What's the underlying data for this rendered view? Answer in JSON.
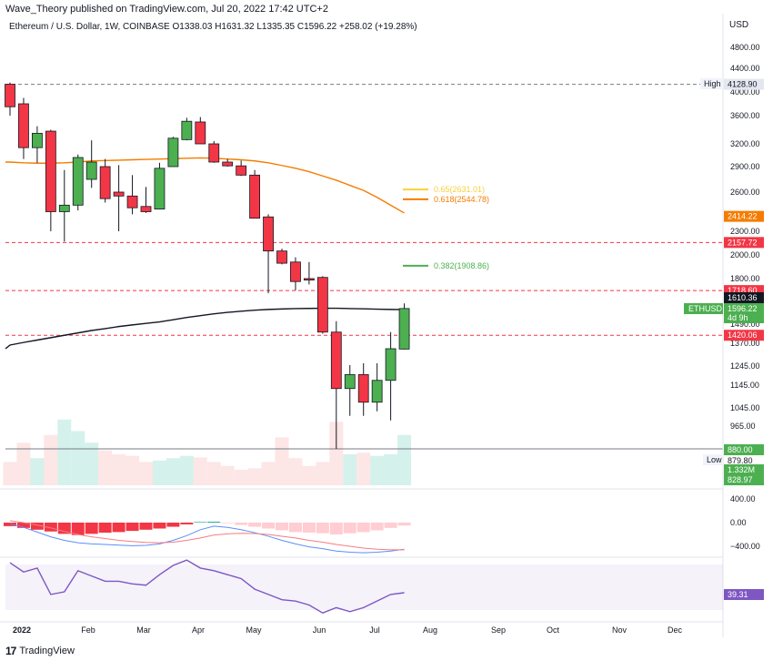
{
  "caption": "Wave_Theory published on TradingView.com, Jul 20, 2022 17:42 UTC+2",
  "footer_brand": "TradingView",
  "chart_data": {
    "type": "candlestick",
    "symbol_line": "Ethereum / U.S. Dollar, 1W, COINBASE  O1338.03  H1631.32  L1335.35  C1596.22  +258.02 (+19.28%)",
    "currency_label": "USD",
    "y_ticks": [
      "4800.00",
      "4400.00",
      "4000.00",
      "3600.00",
      "3200.00",
      "2900.00",
      "2600.00",
      "2300.00",
      "2000.00",
      "1800.00",
      "1490.00",
      "1370.00",
      "1245.00",
      "1145.00",
      "1045.00",
      "965.00"
    ],
    "y_tick_values": [
      4800,
      4400,
      4000,
      3600,
      3200,
      2900,
      2600,
      2300,
      2000,
      1800,
      1490,
      1370,
      1245,
      1145,
      1045,
      965
    ],
    "x_labels": [
      "2022",
      "Feb",
      "Mar",
      "Apr",
      "May",
      "Jun",
      "Jul",
      "Aug",
      "Sep",
      "Oct",
      "Nov",
      "Dec"
    ],
    "candles": [
      {
        "o": 4130,
        "h": 4160,
        "l": 3600,
        "c": 3750
      },
      {
        "o": 3800,
        "h": 3900,
        "l": 3000,
        "c": 3150
      },
      {
        "o": 3150,
        "h": 3450,
        "l": 2950,
        "c": 3350
      },
      {
        "o": 3380,
        "h": 3400,
        "l": 2300,
        "c": 2450
      },
      {
        "o": 2450,
        "h": 2860,
        "l": 2170,
        "c": 2500
      },
      {
        "o": 2500,
        "h": 3060,
        "l": 2460,
        "c": 3020
      },
      {
        "o": 2750,
        "h": 3250,
        "l": 2650,
        "c": 2960
      },
      {
        "o": 2900,
        "h": 3000,
        "l": 2520,
        "c": 2550
      },
      {
        "o": 2600,
        "h": 2920,
        "l": 2300,
        "c": 2570
      },
      {
        "o": 2570,
        "h": 2800,
        "l": 2430,
        "c": 2480
      },
      {
        "o": 2490,
        "h": 2660,
        "l": 2440,
        "c": 2450
      },
      {
        "o": 2470,
        "h": 2950,
        "l": 2470,
        "c": 2880
      },
      {
        "o": 2900,
        "h": 3300,
        "l": 2900,
        "c": 3280
      },
      {
        "o": 3260,
        "h": 3570,
        "l": 3250,
        "c": 3520
      },
      {
        "o": 3510,
        "h": 3580,
        "l": 3200,
        "c": 3200
      },
      {
        "o": 3200,
        "h": 3240,
        "l": 2950,
        "c": 2960
      },
      {
        "o": 2960,
        "h": 3000,
        "l": 2900,
        "c": 2910
      },
      {
        "o": 2910,
        "h": 2980,
        "l": 2790,
        "c": 2800
      },
      {
        "o": 2800,
        "h": 2860,
        "l": 2400,
        "c": 2400
      },
      {
        "o": 2410,
        "h": 2430,
        "l": 1700,
        "c": 2050
      },
      {
        "o": 2050,
        "h": 2080,
        "l": 1920,
        "c": 1930
      },
      {
        "o": 1940,
        "h": 1980,
        "l": 1720,
        "c": 1780
      },
      {
        "o": 1800,
        "h": 1940,
        "l": 1760,
        "c": 1790
      },
      {
        "o": 1810,
        "h": 1820,
        "l": 1430,
        "c": 1440
      },
      {
        "o": 1440,
        "h": 1510,
        "l": 880,
        "c": 1130
      },
      {
        "o": 1130,
        "h": 1250,
        "l": 1010,
        "c": 1200
      },
      {
        "o": 1200,
        "h": 1260,
        "l": 1010,
        "c": 1070
      },
      {
        "o": 1070,
        "h": 1260,
        "l": 1030,
        "c": 1170
      },
      {
        "o": 1170,
        "h": 1440,
        "l": 990,
        "c": 1340
      },
      {
        "o": 1338.03,
        "h": 1631.32,
        "l": 1335.35,
        "c": 1596.22
      }
    ],
    "ema50": [
      2960,
      2950,
      2945,
      2945,
      2950,
      2960,
      2975,
      2980,
      2985,
      2990,
      2995,
      3000,
      3005,
      3010,
      3015,
      3010,
      3000,
      2990,
      2975,
      2950,
      2915,
      2880,
      2840,
      2790,
      2740,
      2680,
      2620,
      2560,
      2500,
      2440
    ],
    "sma200": [
      1360,
      1375,
      1390,
      1405,
      1420,
      1435,
      1450,
      1462,
      1475,
      1485,
      1495,
      1505,
      1520,
      1535,
      1548,
      1560,
      1570,
      1578,
      1585,
      1590,
      1593,
      1596,
      1597,
      1598,
      1598,
      1596,
      1594,
      1592,
      1590,
      1589
    ],
    "volume": [
      0.3,
      0.55,
      0.35,
      0.65,
      0.85,
      0.7,
      0.55,
      0.45,
      0.4,
      0.38,
      0.3,
      0.32,
      0.35,
      0.38,
      0.36,
      0.3,
      0.25,
      0.2,
      0.22,
      0.3,
      0.62,
      0.35,
      0.25,
      0.3,
      0.82,
      0.4,
      0.42,
      0.38,
      0.4,
      0.65
    ],
    "fib_levels": [
      {
        "label": "0.65(2631.01)",
        "value": 2631.01,
        "color": "#f7d13c"
      },
      {
        "label": "0.618(2544.78)",
        "value": 2544.78,
        "color": "#f57c00"
      },
      {
        "label": "0.382(1908.86)",
        "value": 1908.86,
        "color": "#4caf50"
      }
    ],
    "h_lines": [
      {
        "value": 4128.9,
        "color": "#787b86",
        "style": "dash"
      },
      {
        "value": 2157.72,
        "color": "#f23645",
        "style": "dash"
      },
      {
        "value": 1718.6,
        "color": "#f23645",
        "style": "dash"
      },
      {
        "value": 1420.06,
        "color": "#f23645",
        "style": "dash"
      },
      {
        "value": 880.0,
        "color": "#4caf50",
        "style": "solid"
      },
      {
        "value": 879.8,
        "color": "#787b86",
        "style": "solid"
      }
    ],
    "price_tags": [
      {
        "text": "4128.90",
        "value": 4128.9,
        "bg": "#e3e7f0",
        "fg": "#131722"
      },
      {
        "text": "2414.22",
        "value": 2414.22,
        "bg": "#f57c00",
        "fg": "#ffffff"
      },
      {
        "text": "2157.72",
        "value": 2157.72,
        "bg": "#f23645",
        "fg": "#ffffff"
      },
      {
        "text": "1718.60",
        "value": 1718.6,
        "bg": "#f23645",
        "fg": "#ffffff"
      },
      {
        "text": "1610.36",
        "value": 1610.36,
        "bg": "#131722",
        "fg": "#ffffff"
      },
      {
        "text": "1596.22",
        "value": 1596.22,
        "bg": "#4caf50",
        "fg": "#ffffff"
      },
      {
        "text": "1420.06",
        "value": 1420.06,
        "bg": "#f23645",
        "fg": "#ffffff"
      },
      {
        "text": "880.00",
        "value": 880.0,
        "bg": "#4caf50",
        "fg": "#ffffff"
      },
      {
        "text": "879.80",
        "value": 879.8,
        "bg": "#ffffff",
        "fg": "#131722"
      }
    ],
    "extra_tags": {
      "countdown": "4d 9h",
      "volume_val": "1.332M",
      "vol_ma": "828.97"
    },
    "side_labels": {
      "high": "High",
      "low": "Low",
      "ethusd": "ETHUSD"
    },
    "macd": {
      "y_ticks": [
        "400.00",
        "0.00",
        "−400.00"
      ],
      "y_tick_values": [
        400,
        0,
        -400
      ],
      "hist": [
        -60,
        -90,
        -120,
        -150,
        -190,
        -210,
        -190,
        -170,
        -160,
        -140,
        -120,
        -100,
        -70,
        -30,
        10,
        15,
        -10,
        -40,
        -70,
        -100,
        -130,
        -160,
        -170,
        -180,
        -200,
        -180,
        -160,
        -130,
        -90,
        -50
      ],
      "macd_line": [
        -20,
        -80,
        -160,
        -240,
        -300,
        -340,
        -360,
        -370,
        -380,
        -390,
        -385,
        -360,
        -300,
        -220,
        -120,
        -60,
        -80,
        -120,
        -170,
        -230,
        -300,
        -360,
        -410,
        -440,
        -480,
        -500,
        -510,
        -500,
        -480,
        -450
      ],
      "signal_line": [
        30,
        0,
        -40,
        -90,
        -150,
        -200,
        -240,
        -270,
        -300,
        -320,
        -335,
        -340,
        -330,
        -300,
        -260,
        -210,
        -190,
        -180,
        -185,
        -200,
        -230,
        -260,
        -300,
        -330,
        -370,
        -400,
        -430,
        -450,
        -460,
        -460
      ]
    },
    "rsi": {
      "value_tag": "39.31",
      "values": [
        62,
        55,
        58,
        38,
        40,
        56,
        52,
        48,
        48,
        46,
        45,
        53,
        60,
        64,
        58,
        56,
        53,
        50,
        42,
        38,
        34,
        33,
        30,
        24,
        28,
        25,
        28,
        33,
        38,
        39.31
      ]
    }
  }
}
